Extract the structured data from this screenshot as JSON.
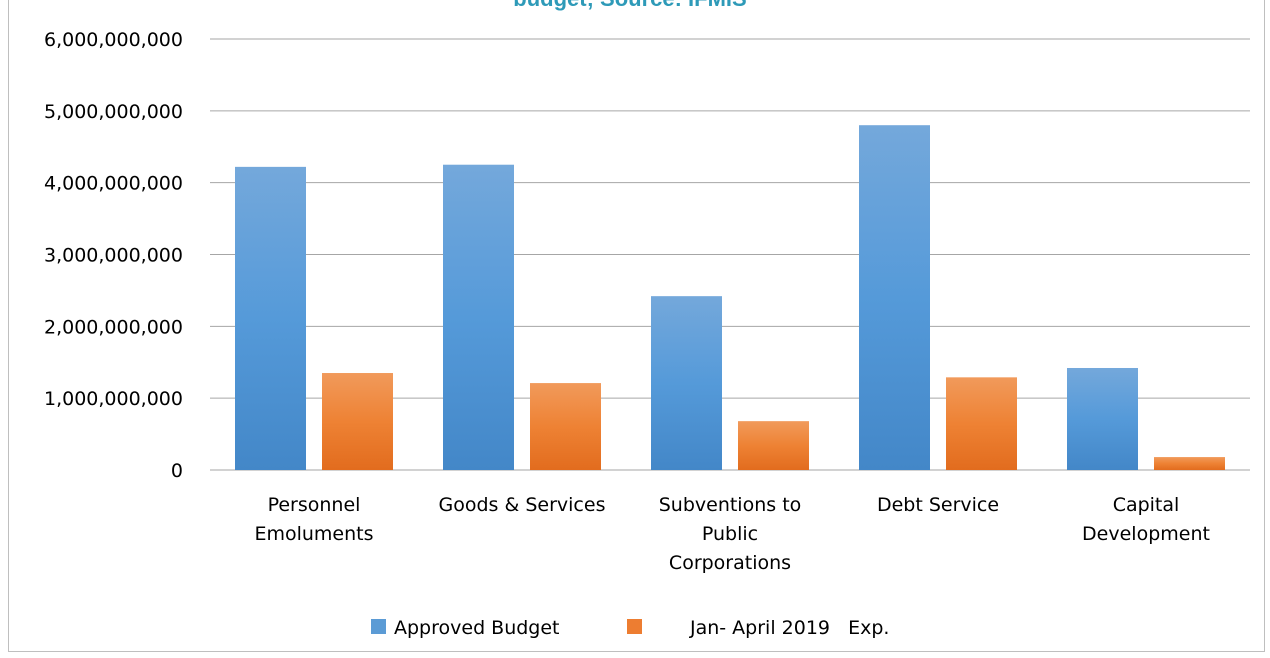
{
  "chart_data": {
    "type": "bar",
    "title": "budget; Source: IFMIS",
    "categories": [
      [
        "Personnel",
        "Emoluments"
      ],
      [
        "Goods & Services"
      ],
      [
        "Subventions to",
        "Public",
        "Corporations"
      ],
      [
        "Debt Service"
      ],
      [
        "Capital",
        "Development"
      ]
    ],
    "series": [
      {
        "name": "Approved Budget",
        "color": "#5b9bd5",
        "values": [
          4220000000,
          4250000000,
          2420000000,
          4800000000,
          1420000000
        ]
      },
      {
        "name": "Jan- April 2019   Exp.",
        "color": "#ed7d31",
        "values": [
          1350000000,
          1210000000,
          680000000,
          1290000000,
          180000000
        ]
      }
    ],
    "ylim": [
      0,
      6000000000
    ],
    "yticks": [
      "0",
      "1,000,000,000",
      "2,000,000,000",
      "3,000,000,000",
      "4,000,000,000",
      "5,000,000,000",
      "6,000,000,000"
    ],
    "grid": true,
    "legend": "bottom"
  }
}
